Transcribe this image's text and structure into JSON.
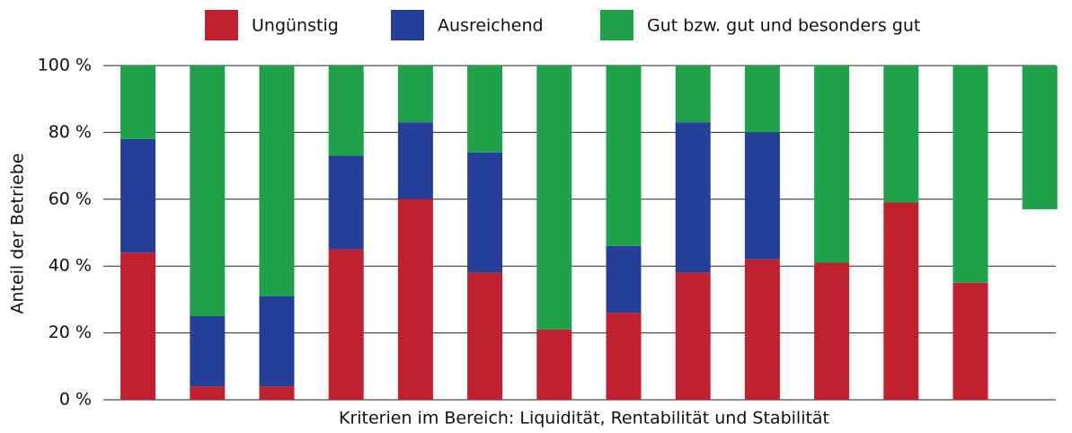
{
  "chart_data": {
    "type": "stacked_bar",
    "x_label": "Kriterien im Bereich: Liquidität, Rentabilität und Stabilität",
    "y_label": "Anteil der Betriebe",
    "categories": [
      null,
      null,
      null,
      null,
      null,
      null,
      null,
      null,
      null,
      null,
      null,
      null,
      null,
      null
    ],
    "series": [
      {
        "name": "Ungünstig",
        "color": "#c1202f",
        "values": [
          44,
          4,
          4,
          45,
          60,
          38,
          21,
          26,
          38,
          42,
          41,
          59,
          35,
          null
        ]
      },
      {
        "name": "Ausreichend",
        "color": "#233f97",
        "values": [
          34,
          21,
          27,
          28,
          23,
          36,
          0,
          20,
          45,
          38,
          0,
          0,
          0,
          null
        ]
      },
      {
        "name": "Gut bzw. gut und besonders gut",
        "color": "#1fa24a",
        "values": [
          22,
          75,
          69,
          27,
          17,
          26,
          79,
          54,
          17,
          20,
          59,
          41,
          65,
          43
        ]
      }
    ],
    "ylim": [
      0,
      100
    ],
    "yticks": [
      {
        "value": 0,
        "label": "0 %"
      },
      {
        "value": 20,
        "label": "20 %"
      },
      {
        "value": 40,
        "label": "40 %"
      },
      {
        "value": 60,
        "label": "60 %"
      },
      {
        "value": 80,
        "label": "80 %"
      },
      {
        "value": 100,
        "label": "100 %"
      }
    ],
    "grid": true,
    "legend": "top"
  }
}
